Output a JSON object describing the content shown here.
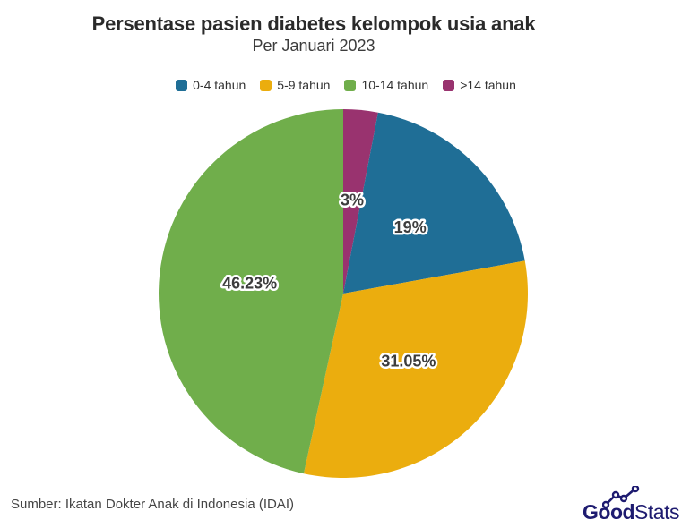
{
  "header": {
    "title": "Persentase pasien diabetes kelompok usia anak",
    "subtitle": "Per Januari 2023"
  },
  "chart_data": {
    "type": "pie",
    "title": "Persentase pasien diabetes kelompok usia anak",
    "subtitle": "Per Januari 2023",
    "unit": "percent",
    "slices": [
      {
        "label": "0-4 tahun",
        "value": 19,
        "display_label": "19%",
        "color": "#1F6E96"
      },
      {
        "label": "5-9 tahun",
        "value": 31.05,
        "display_label": "31.05%",
        "color": "#EBAD0E"
      },
      {
        "label": "10-14 tahun",
        "value": 46.23,
        "display_label": "46.23%",
        "color": "#70AE4B"
      },
      {
        "label": ">14 tahun",
        "value": 3,
        "display_label": "3%",
        "color": "#99336F"
      }
    ],
    "draw_order": [
      3,
      0,
      1,
      2
    ],
    "start_angle_deg": 0,
    "clockwise": true,
    "legend_position": "top",
    "label_radius_ratio": 0.51,
    "label_color": "#3D3D3D",
    "label_outline_color": "#FFFFFF"
  },
  "footer": {
    "source": "Sumber: Ikatan Dokter Anak di Indonesia (IDAI)"
  },
  "logo": {
    "bold_part": "Good",
    "light_part": "Stats",
    "color": "#1E1B70",
    "icon": "trend-line-icon"
  }
}
